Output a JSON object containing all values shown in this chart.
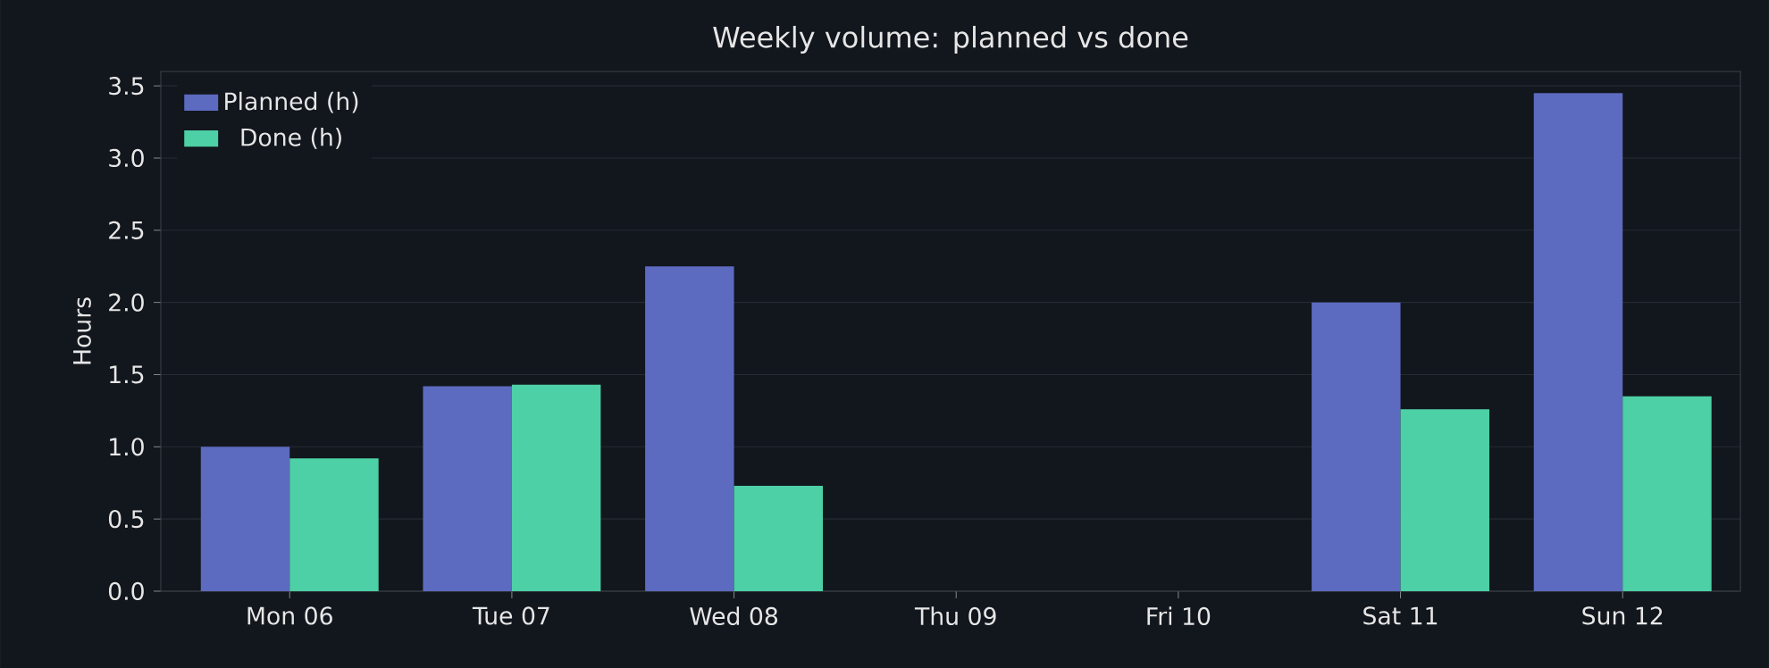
{
  "chart_data": {
    "type": "bar",
    "title": "Weekly volume: planned vs done",
    "ylabel": "Hours",
    "categories": [
      "Mon 06",
      "Tue 07",
      "Wed 08",
      "Thu 09",
      "Fri 10",
      "Sat 11",
      "Sun 12"
    ],
    "series": [
      {
        "name": "Planned (h)",
        "color": "#5c6bc0",
        "values": [
          1.0,
          1.42,
          2.25,
          0,
          0,
          2.0,
          3.45
        ]
      },
      {
        "name": "Done (h)",
        "color": "#4dd0a5",
        "values": [
          0.92,
          1.43,
          0.73,
          0,
          0,
          1.26,
          1.35
        ]
      }
    ],
    "ylim": [
      0,
      3.6
    ],
    "yticks": [
      {
        "value": 0,
        "label": "0.0"
      },
      {
        "value": 0.5,
        "label": "0.5"
      },
      {
        "value": 1,
        "label": "1.0"
      },
      {
        "value": 1.5,
        "label": "1.5"
      },
      {
        "value": 2,
        "label": "2.0"
      },
      {
        "value": 2.5,
        "label": "2.5"
      },
      {
        "value": 3,
        "label": "3.0"
      },
      {
        "value": 3.5,
        "label": "3.5"
      }
    ],
    "grid": "y",
    "legend": "top left"
  }
}
